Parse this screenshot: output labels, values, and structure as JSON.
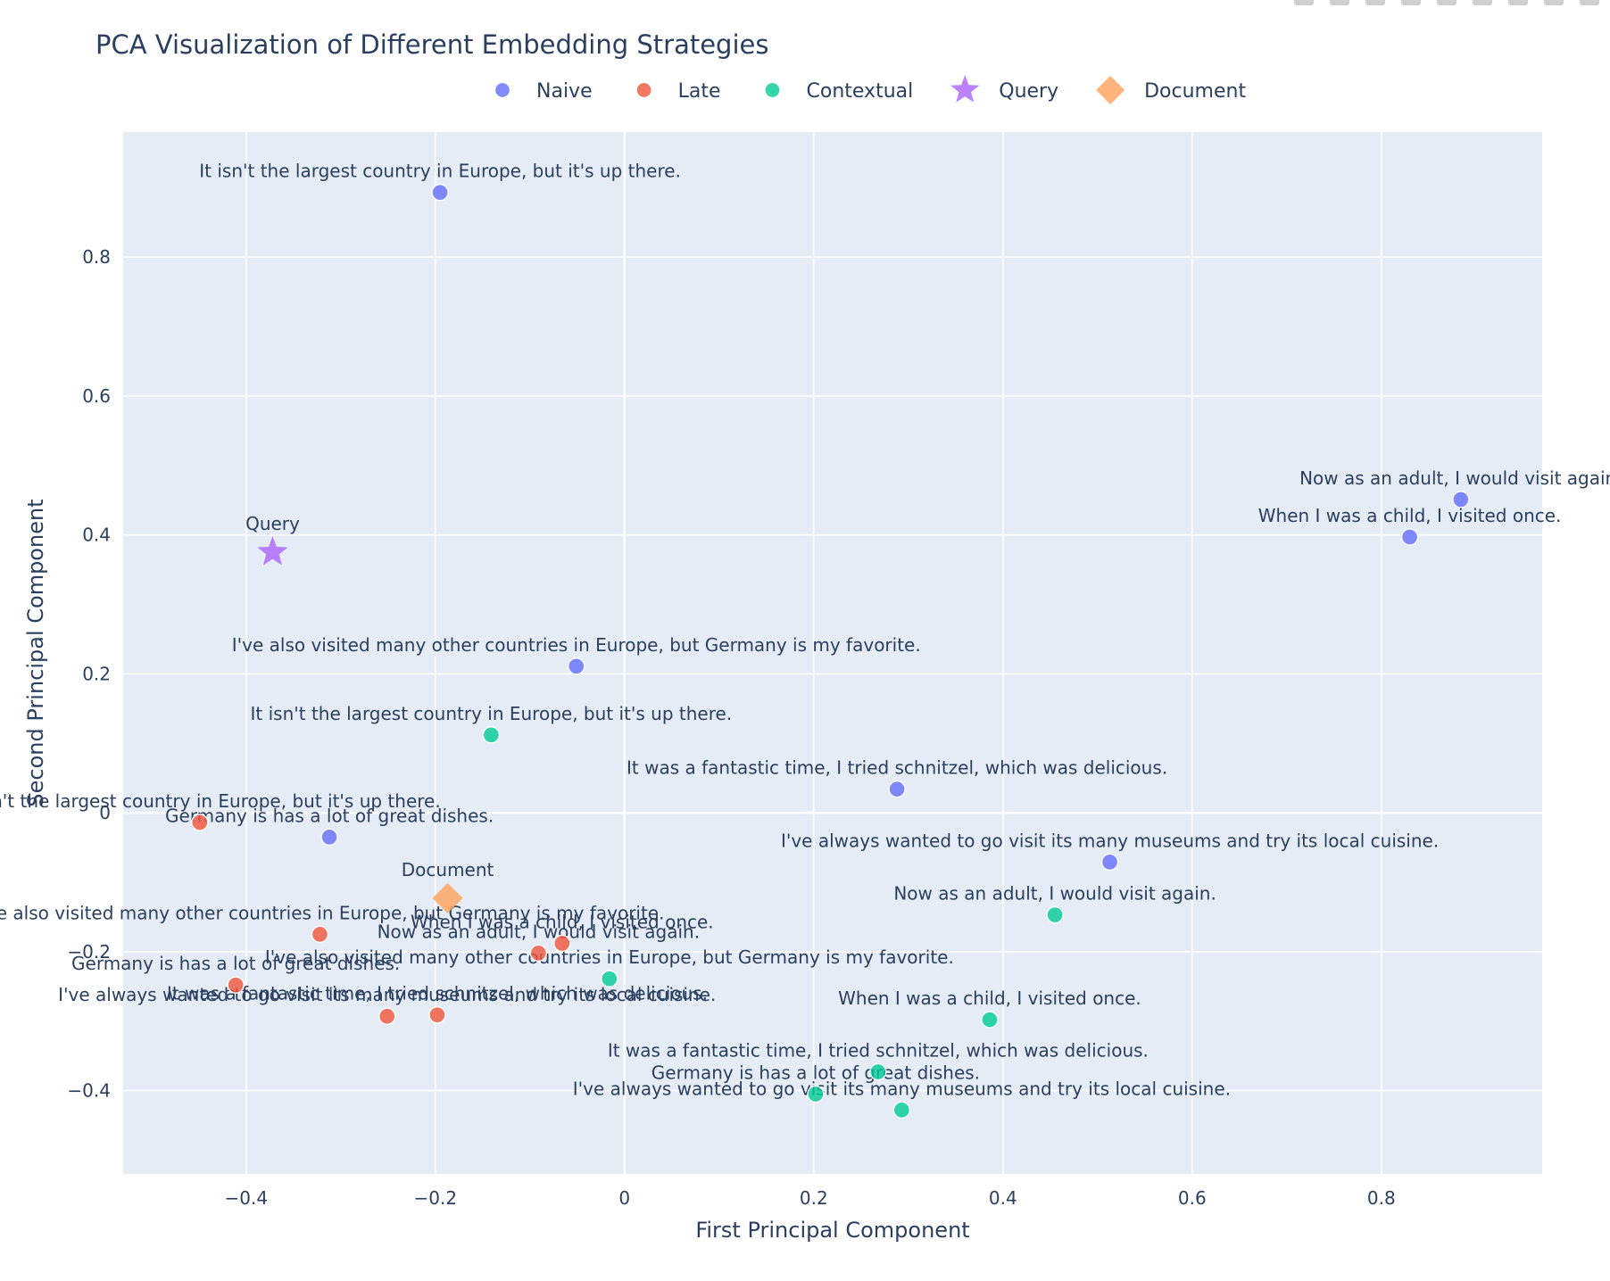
{
  "chart_data": {
    "type": "scatter",
    "title": "PCA Visualization of Different Embedding Strategies",
    "xlabel": "First Principal Component",
    "ylabel": "Second Principal Component",
    "xlim": [
      -0.53,
      0.97
    ],
    "ylim": [
      -0.52,
      0.98
    ],
    "xticks": [
      -0.4,
      -0.2,
      0,
      0.2,
      0.4,
      0.6,
      0.8
    ],
    "yticks": [
      -0.4,
      -0.2,
      0,
      0.2,
      0.4,
      0.6,
      0.8
    ],
    "grid": true,
    "legend_position": "top-center",
    "colors": {
      "background": "#e5ecf6",
      "naive": "#636efa",
      "late": "#ef553b",
      "contextual": "#00cc96",
      "query": "#ab63fa",
      "document": "#ffa15a"
    },
    "series": [
      {
        "name": "Naive",
        "marker": "circle",
        "color": "#636efa",
        "points": [
          {
            "x": -0.195,
            "y": 0.893,
            "label": "It isn't the largest country in Europe, but it's up there."
          },
          {
            "x": -0.051,
            "y": 0.211,
            "label": "I've also visited many other countries in Europe, but Germany is my favorite."
          },
          {
            "x": 0.288,
            "y": 0.034,
            "label": "It was a fantastic time, I tried schnitzel, which was delicious."
          },
          {
            "x": -0.312,
            "y": -0.035,
            "label": "Germany is has a lot of great dishes."
          },
          {
            "x": 0.513,
            "y": -0.071,
            "label": "I've always wanted to go visit its many museums and try its local cuisine."
          },
          {
            "x": 0.884,
            "y": 0.451,
            "label": "Now as an adult, I would visit again."
          },
          {
            "x": 0.83,
            "y": 0.397,
            "label": "When I was a child, I visited once."
          }
        ]
      },
      {
        "name": "Late",
        "marker": "circle",
        "color": "#ef553b",
        "points": [
          {
            "x": -0.449,
            "y": -0.014,
            "label": "It isn't the largest country in Europe, but it's up there."
          },
          {
            "x": -0.322,
            "y": -0.175,
            "label": "I've also visited many other countries in Europe, but Germany is my favorite."
          },
          {
            "x": -0.411,
            "y": -0.248,
            "label": "Germany is has a lot of great dishes."
          },
          {
            "x": -0.251,
            "y": -0.293,
            "label": "I've always wanted to go visit its many museums and try its local cuisine."
          },
          {
            "x": -0.198,
            "y": -0.291,
            "label": "It was a fantastic time, I tried schnitzel, which was delicious."
          },
          {
            "x": -0.091,
            "y": -0.202,
            "label": "Now as an adult, I would visit again."
          },
          {
            "x": -0.066,
            "y": -0.188,
            "label": "When I was a child, I visited once."
          }
        ]
      },
      {
        "name": "Contextual",
        "marker": "circle",
        "color": "#00cc96",
        "points": [
          {
            "x": -0.141,
            "y": 0.112,
            "label": "It isn't the largest country in Europe, but it's up there."
          },
          {
            "x": 0.455,
            "y": -0.147,
            "label": "Now as an adult, I would visit again."
          },
          {
            "x": -0.016,
            "y": -0.239,
            "label": "I've also visited many other countries in Europe, but Germany is my favorite."
          },
          {
            "x": 0.386,
            "y": -0.298,
            "label": "When I was a child, I visited once."
          },
          {
            "x": 0.268,
            "y": -0.373,
            "label": "It was a fantastic time, I tried schnitzel, which was delicious."
          },
          {
            "x": 0.202,
            "y": -0.405,
            "label": "Germany is has a lot of great dishes."
          },
          {
            "x": 0.293,
            "y": -0.428,
            "label": "I've always wanted to go visit its many museums and try its local cuisine."
          }
        ]
      },
      {
        "name": "Query",
        "marker": "star",
        "color": "#ab63fa",
        "points": [
          {
            "x": -0.372,
            "y": 0.375,
            "label": "Query"
          }
        ]
      },
      {
        "name": "Document",
        "marker": "diamond",
        "color": "#ffa15a",
        "points": [
          {
            "x": -0.187,
            "y": -0.123,
            "label": "Document"
          }
        ]
      }
    ]
  }
}
